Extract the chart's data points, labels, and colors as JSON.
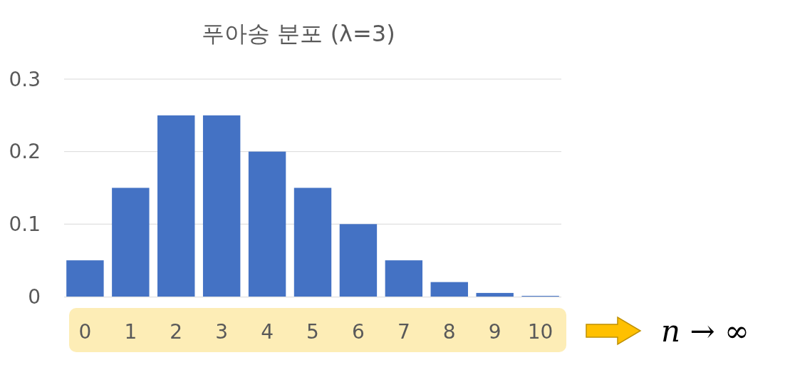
{
  "chart_data": {
    "type": "bar",
    "title": "푸아송 분포 (λ=3)",
    "categories": [
      "0",
      "1",
      "2",
      "3",
      "4",
      "5",
      "6",
      "7",
      "8",
      "9",
      "10"
    ],
    "values": [
      0.05,
      0.15,
      0.25,
      0.25,
      0.2,
      0.15,
      0.1,
      0.05,
      0.02,
      0.005,
      0.001
    ],
    "color": "#4472c4",
    "ylim": [
      0,
      0.3
    ],
    "yticks": [
      0,
      0.1,
      0.2,
      0.3
    ],
    "grid": "y",
    "annotations": [
      "n → ∞"
    ]
  }
}
